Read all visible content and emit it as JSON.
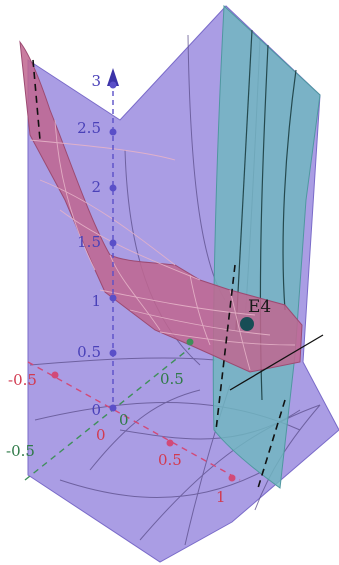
{
  "colors": {
    "background": "#ffffff",
    "purple_surface": "#9b8cdf",
    "pink_surface": "#c0668f",
    "teal_surface": "#6fb7c0",
    "z_axis": "#5a4fc8",
    "x_axis": "#d24a78",
    "y_axis": "#3f8f5a",
    "point": "#174d55"
  },
  "z_axis": {
    "ticks": [
      "3",
      "2.5",
      "2",
      "1.5",
      "1",
      "0.5",
      "0"
    ]
  },
  "x_axis": {
    "ticks": [
      "-0.5",
      "0",
      "0.5",
      "1"
    ]
  },
  "y_axis": {
    "ticks": [
      "-0.5",
      "0",
      "0.5"
    ]
  },
  "point": {
    "label": "E4"
  }
}
